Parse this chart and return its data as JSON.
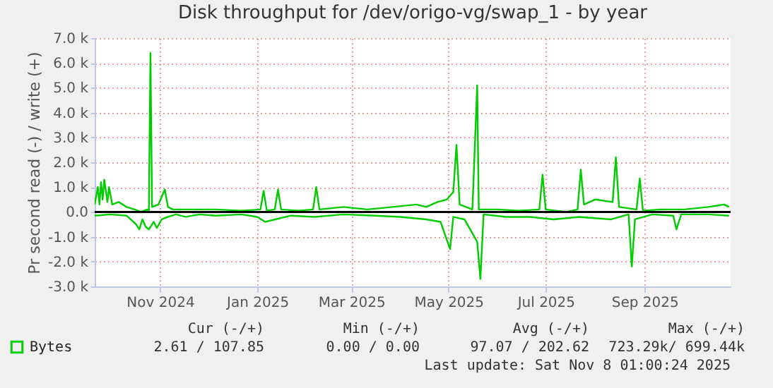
{
  "chart_data": {
    "type": "line",
    "title": "Disk throughput for /dev/origo-vg/swap_1 - by year",
    "ylabel": "Pr second read (-) / write (+)",
    "xlim": [
      "2024-10-05",
      "2025-11-08"
    ],
    "xticks": [
      {
        "value": "2024-11-15",
        "label": "Nov 2024"
      },
      {
        "value": "2025-01-15",
        "label": "Jan 2025"
      },
      {
        "value": "2025-03-15",
        "label": "Mar 2025"
      },
      {
        "value": "2025-05-15",
        "label": "May 2025"
      },
      {
        "value": "2025-07-15",
        "label": "Jul 2025"
      },
      {
        "value": "2025-09-15",
        "label": "Sep 2025"
      }
    ],
    "ylim": [
      -3000,
      7000
    ],
    "yticks": [
      {
        "value": -3000,
        "label": "-3.0 k"
      },
      {
        "value": -2000,
        "label": "-2.0 k"
      },
      {
        "value": -1000,
        "label": "-1.0 k"
      },
      {
        "value": 0,
        "label": "0.0"
      },
      {
        "value": 1000,
        "label": "1.0 k"
      },
      {
        "value": 2000,
        "label": "2.0 k"
      },
      {
        "value": 3000,
        "label": "3.0 k"
      },
      {
        "value": 4000,
        "label": "4.0 k"
      },
      {
        "value": 5000,
        "label": "5.0 k"
      },
      {
        "value": 6000,
        "label": "6.0 k"
      },
      {
        "value": 7000,
        "label": "7.0 k"
      }
    ],
    "grid": true,
    "legend": "bottom",
    "line_style": "solid",
    "marker": "none",
    "ref_lines": [
      {
        "axis": "y",
        "value": 0,
        "label": null,
        "color": "#000000"
      }
    ],
    "series": [
      {
        "name": "Bytes",
        "color": "#00cc00",
        "x": [
          "2024-10-05",
          "2024-10-07",
          "2024-10-08",
          "2024-10-09",
          "2024-10-10",
          "2024-10-11",
          "2024-10-13",
          "2024-10-14",
          "2024-10-16",
          "2024-10-20",
          "2024-10-25",
          "2024-10-30",
          "2024-11-03",
          "2024-11-07",
          "2024-11-08",
          "2024-11-09",
          "2024-11-10",
          "2024-11-14",
          "2024-11-18",
          "2024-11-20",
          "2024-11-23",
          "2024-12-05",
          "2024-12-20",
          "2025-01-05",
          "2025-01-17",
          "2025-01-19",
          "2025-01-21",
          "2025-01-26",
          "2025-01-28",
          "2025-01-30",
          "2025-02-10",
          "2025-02-19",
          "2025-02-21",
          "2025-02-23",
          "2025-03-10",
          "2025-03-25",
          "2025-04-10",
          "2025-04-25",
          "2025-05-01",
          "2025-05-08",
          "2025-05-14",
          "2025-05-18",
          "2025-05-20",
          "2025-05-22",
          "2025-05-30",
          "2025-06-02",
          "2025-06-03",
          "2025-06-15",
          "2025-06-28",
          "2025-07-11",
          "2025-07-13",
          "2025-07-15",
          "2025-07-28",
          "2025-08-04",
          "2025-08-06",
          "2025-08-08",
          "2025-08-15",
          "2025-08-26",
          "2025-08-28",
          "2025-08-30",
          "2025-09-10",
          "2025-09-12",
          "2025-09-14",
          "2025-09-25",
          "2025-10-10",
          "2025-10-25",
          "2025-11-04",
          "2025-11-07"
        ],
        "values": [
          300,
          1000,
          300,
          1200,
          500,
          1300,
          400,
          1000,
          300,
          400,
          200,
          100,
          0,
          100,
          0,
          6400,
          200,
          300,
          900,
          200,
          100,
          100,
          100,
          50,
          100,
          850,
          50,
          100,
          900,
          100,
          50,
          100,
          1000,
          100,
          200,
          100,
          200,
          300,
          200,
          400,
          500,
          800,
          2700,
          300,
          100,
          5100,
          100,
          100,
          50,
          100,
          1500,
          100,
          0,
          100,
          1700,
          300,
          500,
          400,
          2200,
          200,
          100,
          1350,
          50,
          100,
          100,
          200,
          300,
          200
        ]
      },
      {
        "color": "#00cc00",
        "x": [
          "2024-10-05",
          "2024-10-15",
          "2024-10-25",
          "2024-10-31",
          "2024-11-02",
          "2024-11-04",
          "2024-11-06",
          "2024-11-08",
          "2024-11-11",
          "2024-11-13",
          "2024-11-16",
          "2024-11-20",
          "2024-11-25",
          "2024-12-01",
          "2024-12-10",
          "2024-12-20",
          "2025-01-05",
          "2025-01-15",
          "2025-01-20",
          "2025-02-05",
          "2025-02-20",
          "2025-03-10",
          "2025-03-30",
          "2025-04-15",
          "2025-05-01",
          "2025-05-10",
          "2025-05-16",
          "2025-05-18",
          "2025-05-25",
          "2025-06-02",
          "2025-06-04",
          "2025-06-06",
          "2025-06-20",
          "2025-07-05",
          "2025-07-20",
          "2025-08-05",
          "2025-08-25",
          "2025-09-05",
          "2025-09-07",
          "2025-09-09",
          "2025-09-20",
          "2025-10-03",
          "2025-10-05",
          "2025-10-08",
          "2025-10-25",
          "2025-11-07"
        ],
        "values": [
          -150,
          -100,
          -150,
          -500,
          -700,
          -300,
          -600,
          -700,
          -400,
          -650,
          -300,
          -200,
          -100,
          -200,
          -100,
          -150,
          -100,
          -200,
          -400,
          -150,
          -200,
          -100,
          -150,
          -200,
          -300,
          -400,
          -1500,
          -200,
          -300,
          -1200,
          -2700,
          -100,
          -200,
          -200,
          -300,
          -200,
          -300,
          -100,
          -2200,
          -300,
          -100,
          -150,
          -700,
          -100,
          -100,
          -150
        ]
      }
    ],
    "annotations": [
      "Cur (-/+)",
      "Min (-/+)",
      "Avg (-/+)",
      "Max (-/+)",
      "2.61 / 107.85",
      "0.00 /    0.00",
      "97.07 / 202.62",
      "723.29k/ 699.44k",
      "Last update: Sat Nov  8 01:00:24 2025"
    ]
  }
}
